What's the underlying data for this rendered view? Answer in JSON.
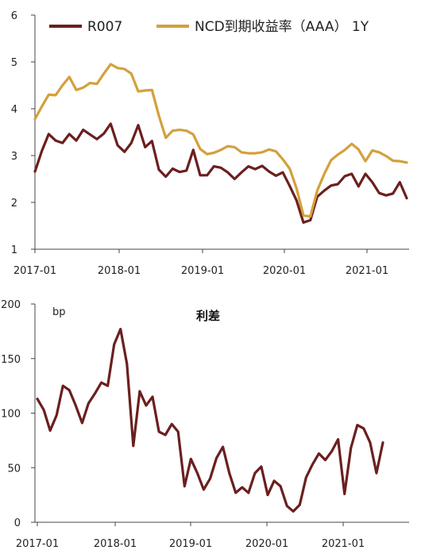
{
  "chart_data": [
    {
      "type": "line",
      "title": "",
      "ylim": [
        1,
        6
      ],
      "yticks": [
        "1",
        "2",
        "3",
        "4",
        "5",
        "6"
      ],
      "xlabels": [
        "2017-01",
        "2018-01",
        "2019-01",
        "2020-01",
        "2021-01"
      ],
      "legend_position": "top",
      "series": [
        {
          "name": "R007",
          "color": "#6b1f1f",
          "values": [
            2.66,
            3.1,
            3.46,
            3.32,
            3.27,
            3.46,
            3.32,
            3.55,
            3.45,
            3.35,
            3.47,
            3.68,
            3.22,
            3.08,
            3.27,
            3.65,
            3.18,
            3.31,
            2.7,
            2.55,
            2.72,
            2.65,
            2.68,
            3.12,
            2.58,
            2.58,
            2.77,
            2.74,
            2.64,
            2.5,
            2.64,
            2.77,
            2.71,
            2.78,
            2.66,
            2.57,
            2.64,
            2.35,
            2.04,
            1.57,
            1.62,
            2.12,
            2.25,
            2.36,
            2.39,
            2.56,
            2.61,
            2.34,
            2.61,
            2.43,
            2.2,
            2.15,
            2.19,
            2.43,
            2.09
          ]
        },
        {
          "name": "NCD到期收益率（AAA） 1Y",
          "color": "#d4a03c",
          "values": [
            3.78,
            4.05,
            4.3,
            4.29,
            4.5,
            4.68,
            4.4,
            4.45,
            4.55,
            4.53,
            4.75,
            4.95,
            4.87,
            4.85,
            4.75,
            4.37,
            4.39,
            4.4,
            3.85,
            3.38,
            3.53,
            3.55,
            3.53,
            3.45,
            3.14,
            3.03,
            3.06,
            3.12,
            3.2,
            3.18,
            3.07,
            3.05,
            3.05,
            3.07,
            3.13,
            3.09,
            2.92,
            2.72,
            2.3,
            1.72,
            1.7,
            2.25,
            2.6,
            2.9,
            3.02,
            3.12,
            3.25,
            3.13,
            2.88,
            3.11,
            3.07,
            2.99,
            2.89,
            2.88,
            2.85
          ]
        }
      ]
    },
    {
      "type": "line",
      "title": "利差",
      "unit_label": "bp",
      "ylim": [
        0,
        200
      ],
      "yticks": [
        "0",
        "50",
        "100",
        "150",
        "200"
      ],
      "xlabels": [
        "2017-01",
        "2018-01",
        "2019-01",
        "2020-01",
        "2021-01"
      ],
      "series": [
        {
          "name": "",
          "color": "#6b1f1f",
          "values": [
            113,
            103,
            84,
            98,
            125,
            121,
            107,
            91,
            109,
            118,
            128,
            125,
            163,
            177,
            145,
            70,
            120,
            107,
            115,
            83,
            80,
            90,
            83,
            33,
            58,
            45,
            30,
            40,
            59,
            69,
            45,
            27,
            32,
            27,
            45,
            51,
            25,
            38,
            33,
            15,
            10,
            16,
            41,
            53,
            63,
            57,
            65,
            76,
            26,
            68,
            89,
            86,
            73,
            45,
            73
          ]
        }
      ]
    }
  ]
}
